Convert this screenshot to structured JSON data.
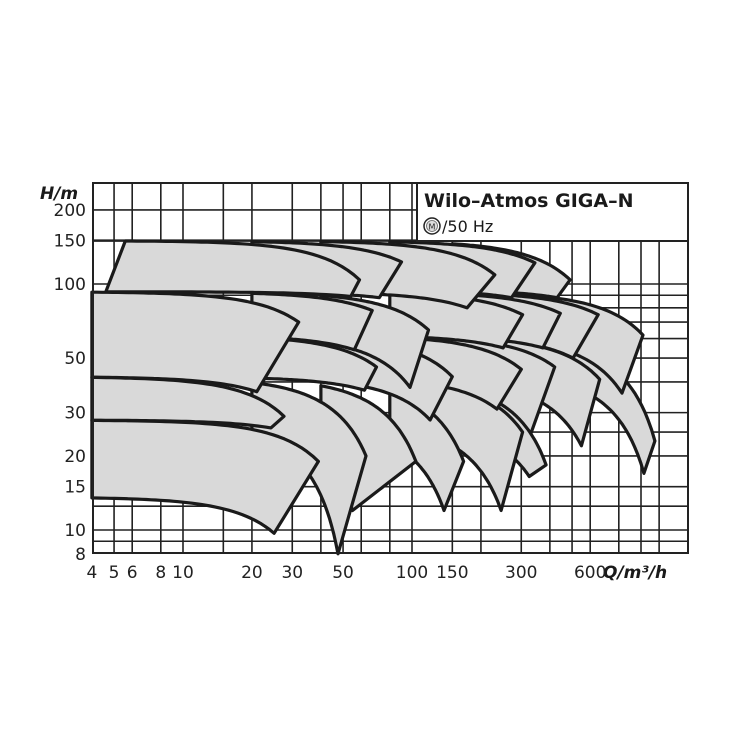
{
  "chart_data": {
    "type": "area",
    "title": "Wilo–Atmos GIGA–N",
    "subtitle": "/50 Hz",
    "subtitle_icon": "motor-m-circle-icon",
    "xlabel": "Q/m³/h",
    "ylabel": "H/m",
    "x_scale": "log",
    "y_scale": "log",
    "xlim": [
      4,
      1600
    ],
    "ylim": [
      8,
      257
    ],
    "grid": true,
    "x_ticks": [
      4,
      5,
      6,
      8,
      10,
      20,
      30,
      50,
      100,
      150,
      300,
      600
    ],
    "y_ticks": [
      200,
      150,
      100,
      50,
      30,
      20,
      15,
      10,
      8
    ],
    "x_grid": [
      5,
      6,
      8,
      10,
      15,
      20,
      30,
      40,
      50,
      60,
      80,
      100,
      150,
      200,
      300,
      400,
      500,
      600,
      800,
      1000,
      1200
    ],
    "y_grid": [
      9,
      10,
      12.5,
      15,
      20,
      25,
      30,
      40,
      50,
      60,
      70,
      80,
      90,
      100,
      150,
      200
    ],
    "colors": {
      "fill": "#d9d9d9",
      "curve": "#1a1a1a",
      "grid": "#222222"
    },
    "operating_ranges": [
      {
        "q0": [
          4.6,
          5.6
        ],
        "top": [
          150,
          59,
          104
        ],
        "bottom": [
          93,
          54,
          89
        ]
      },
      {
        "q0": [
          20,
          20
        ],
        "top": [
          150,
          90,
          123
        ],
        "bottom": [
          93,
          72,
          88
        ]
      },
      {
        "q0": [
          40,
          40
        ],
        "top": [
          150,
          230,
          109
        ],
        "bottom": [
          93,
          174,
          80
        ]
      },
      {
        "q0": [
          80,
          80
        ],
        "top": [
          150,
          344,
          122
        ],
        "bottom": [
          95,
          272,
          88
        ]
      },
      {
        "q0": [
          150,
          150
        ],
        "top": [
          150,
          490,
          104
        ],
        "bottom": [
          95,
          430,
          88
        ]
      },
      {
        "q0": [
          4,
          4
        ],
        "top": [
          93,
          32,
          70
        ],
        "bottom": [
          42,
          21,
          36.5
        ]
      },
      {
        "q0": [
          20,
          20
        ],
        "top": [
          93,
          67,
          78
        ],
        "bottom": [
          62,
          56,
          54
        ]
      },
      {
        "q0": [
          40,
          40
        ],
        "top": [
          93,
          118,
          65
        ],
        "bottom": [
          62,
          98,
          38
        ]
      },
      {
        "q0": [
          80,
          80
        ],
        "top": [
          93,
          304,
          75
        ],
        "bottom": [
          62,
          250,
          55
        ]
      },
      {
        "q0": [
          120,
          120
        ],
        "top": [
          93,
          444,
          76
        ],
        "bottom": [
          62,
          373,
          55
        ]
      },
      {
        "q0": [
          200,
          200
        ],
        "top": [
          93,
          650,
          75
        ],
        "bottom": [
          62,
          505,
          50
        ]
      },
      {
        "q0": [
          250,
          250
        ],
        "top": [
          93,
          1020,
          62
        ],
        "bottom": [
          62,
          826,
          36
        ]
      },
      {
        "q0": [
          20,
          20
        ],
        "top": [
          62,
          70,
          46
        ],
        "bottom": [
          42,
          62,
          37
        ]
      },
      {
        "q0": [
          40,
          40
        ],
        "top": [
          62,
          150,
          42
        ],
        "bottom": [
          42,
          120,
          28
        ]
      },
      {
        "q0": [
          80,
          80
        ],
        "top": [
          62,
          300,
          45
        ],
        "bottom": [
          42,
          235,
          31
        ]
      },
      {
        "q0": [
          120,
          120
        ],
        "top": [
          62,
          420,
          46
        ],
        "bottom": [
          42,
          327,
          24
        ]
      },
      {
        "q0": [
          200,
          200
        ],
        "top": [
          62,
          660,
          41
        ],
        "bottom": [
          42,
          549,
          22
        ]
      },
      {
        "q0": [
          300,
          300
        ],
        "top": [
          62,
          1150,
          23
        ],
        "bottom": [
          45,
          1030,
          17
        ]
      },
      {
        "q0": [
          4,
          4
        ],
        "top": [
          42,
          27.6,
          29
        ],
        "bottom": [
          28,
          24.2,
          26
        ]
      },
      {
        "q0": [
          4,
          4
        ],
        "top": [
          28,
          39,
          19
        ],
        "bottom": [
          13.6,
          25,
          9.7
        ]
      },
      {
        "q0": [
          20,
          20
        ],
        "top": [
          42,
          63,
          20
        ],
        "bottom": [
          28,
          47.5,
          8
        ]
      },
      {
        "q0": [
          40,
          40
        ],
        "top": [
          42,
          104,
          19
        ],
        "bottom": [
          28,
          55,
          12
        ]
      },
      {
        "q0": [
          80,
          80
        ],
        "top": [
          42,
          168,
          19
        ],
        "bottom": [
          28,
          138,
          12
        ]
      },
      {
        "q0": [
          120,
          120
        ],
        "top": [
          42,
          304,
          25
        ],
        "bottom": [
          28,
          245,
          12
        ]
      },
      {
        "q0": [
          200,
          200
        ],
        "top": [
          42,
          385,
          18.4
        ],
        "bottom": [
          28,
          325,
          16.5
        ]
      }
    ]
  }
}
